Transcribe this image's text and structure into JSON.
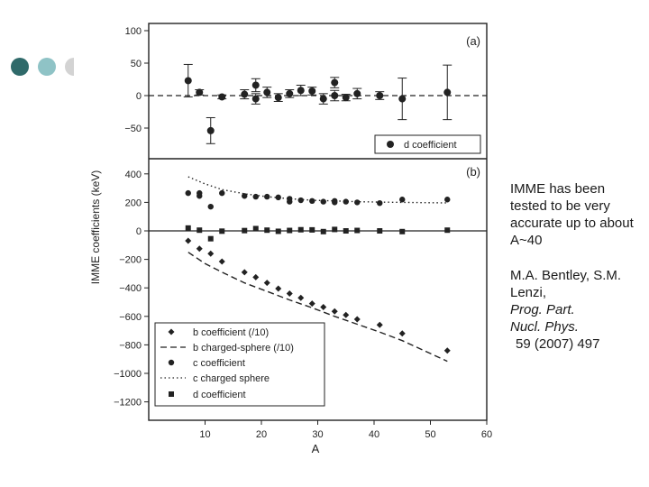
{
  "theme": {
    "dot_dark": "#2f6a6a",
    "dot_mid": "#8fc3c6",
    "dot_light": "#d3d3d3",
    "ink": "#222222"
  },
  "side_text": {
    "claim": "IMME has been tested to be very accurate up to about A~40",
    "citation_authors": "M.A. Bentley, S.M. Lenzi,",
    "citation_journal_1": "Prog. Part.",
    "citation_journal_2": "Nucl. Phys.",
    "citation_ref": "59 (2007) 497"
  },
  "chart_data": [
    {
      "type": "scatter",
      "panel": "(a)",
      "ylabel": "IMME coefficients (keV)",
      "xlim": [
        0,
        60
      ],
      "ylim": [
        -80,
        100
      ],
      "yticks": [
        100,
        50,
        0,
        -50
      ],
      "zero_line": "dashed",
      "legend": {
        "position": "bottom-right",
        "entries": [
          "d coefficient"
        ]
      },
      "series": [
        {
          "name": "d coefficient",
          "x": [
            7,
            9,
            11,
            13,
            17,
            19,
            19,
            21,
            23,
            25,
            27,
            29,
            31,
            33,
            33,
            35,
            37,
            41,
            45,
            53
          ],
          "y": [
            23,
            5,
            -54,
            -2,
            2,
            16,
            -5,
            5,
            -3,
            3,
            8,
            7,
            -5,
            20,
            0,
            -3,
            3,
            0,
            -5,
            5
          ],
          "err": [
            25,
            4,
            20,
            3,
            7,
            10,
            8,
            8,
            6,
            6,
            8,
            6,
            8,
            8,
            8,
            5,
            8,
            6,
            32,
            42
          ]
        }
      ]
    },
    {
      "type": "scatter",
      "panel": "(b)",
      "xlabel": "A",
      "xlim": [
        0,
        60
      ],
      "xticks": [
        10,
        20,
        30,
        40,
        50,
        60
      ],
      "ylim": [
        -1300,
        450
      ],
      "yticks": [
        400,
        200,
        0,
        -200,
        -400,
        -600,
        -800,
        -1000,
        -1200
      ],
      "zero_line": "solid",
      "legend": {
        "position": "bottom-left",
        "entries": [
          "b coefficient (/10)",
          "b charged-sphere (/10)",
          "c coefficient",
          "c charged sphere",
          "d coefficient"
        ]
      },
      "series": [
        {
          "name": "b coefficient (/10)",
          "x": [
            7,
            9,
            11,
            13,
            17,
            19,
            21,
            23,
            25,
            27,
            29,
            31,
            33,
            35,
            37,
            41,
            45,
            53
          ],
          "y": [
            -70,
            -125,
            -160,
            -215,
            -290,
            -325,
            -365,
            -405,
            -440,
            -470,
            -510,
            -535,
            -565,
            -590,
            -620,
            -660,
            -720,
            -840
          ]
        },
        {
          "name": "b charged-sphere (/10)",
          "x": [
            7,
            10,
            13,
            17,
            21,
            25,
            29,
            33,
            37,
            41,
            45,
            53
          ],
          "y": [
            -150,
            -230,
            -290,
            -365,
            -425,
            -485,
            -540,
            -600,
            -655,
            -710,
            -770,
            -915
          ]
        },
        {
          "name": "c coefficient",
          "x": [
            7,
            9,
            9,
            11,
            13,
            17,
            19,
            21,
            23,
            25,
            25,
            27,
            29,
            31,
            33,
            33,
            35,
            37,
            41,
            45,
            53
          ],
          "y": [
            265,
            265,
            245,
            170,
            265,
            245,
            240,
            240,
            235,
            225,
            205,
            215,
            210,
            205,
            210,
            200,
            205,
            200,
            195,
            220,
            220
          ]
        },
        {
          "name": "c charged sphere",
          "x": [
            7,
            10,
            13,
            17,
            21,
            25,
            29,
            33,
            37,
            41,
            45,
            49,
            53
          ],
          "y": [
            380,
            330,
            290,
            260,
            240,
            225,
            215,
            210,
            205,
            202,
            200,
            198,
            196
          ]
        },
        {
          "name": "d coefficient",
          "x": [
            7,
            9,
            11,
            13,
            17,
            19,
            21,
            23,
            25,
            27,
            29,
            31,
            33,
            35,
            37,
            41,
            45,
            53
          ],
          "y": [
            20,
            5,
            -55,
            -2,
            2,
            16,
            5,
            -3,
            3,
            8,
            7,
            -5,
            10,
            0,
            3,
            0,
            -5,
            5
          ]
        }
      ]
    }
  ]
}
